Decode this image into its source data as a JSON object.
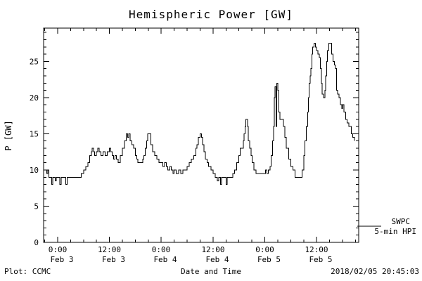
{
  "title": "Hemispheric Power [GW]",
  "footer": {
    "left": "Plot: CCMC",
    "center": "Date and Time",
    "right": "2018/02/05 20:45:03"
  },
  "legend": {
    "line1": "SWPC",
    "line2": "5-min HPI"
  },
  "chart_data": {
    "type": "line",
    "title": "Hemispheric Power [GW]",
    "xlabel": "Date and Time",
    "ylabel": "P [GW]",
    "ylim": [
      0,
      29.6
    ],
    "xlim_hours": [
      -3.25,
      69.75
    ],
    "x_unit": "hours from Feb 3 00:00",
    "grid": false,
    "line_color": "#000000",
    "legend_position": "right-outside",
    "legend_entries": [
      "SWPC 5-min HPI"
    ],
    "y_ticks": [
      0,
      5,
      10,
      15,
      20,
      25
    ],
    "x_ticks": [
      {
        "hour": 0,
        "time": "0:00",
        "date": "Feb 3"
      },
      {
        "hour": 12,
        "time": "12:00",
        "date": "Feb 3"
      },
      {
        "hour": 24,
        "time": "0:00",
        "date": "Feb 4"
      },
      {
        "hour": 36,
        "time": "12:00",
        "date": "Feb 4"
      },
      {
        "hour": 48,
        "time": "0:00",
        "date": "Feb 5"
      },
      {
        "hour": 60,
        "time": "12:00",
        "date": "Feb 5"
      }
    ],
    "series": [
      {
        "name": "SWPC 5-min HPI",
        "points": [
          [
            -3.25,
            10
          ],
          [
            -2.75,
            10
          ],
          [
            -2.5,
            9.5
          ],
          [
            -2.25,
            10
          ],
          [
            -2,
            9
          ],
          [
            -1.6,
            9
          ],
          [
            -1.4,
            8
          ],
          [
            -1.1,
            9
          ],
          [
            -0.6,
            8.5
          ],
          [
            -0.3,
            9
          ],
          [
            0.3,
            9
          ],
          [
            0.5,
            8
          ],
          [
            0.8,
            9
          ],
          [
            1.5,
            9
          ],
          [
            1.9,
            8
          ],
          [
            2.2,
            9
          ],
          [
            3,
            9
          ],
          [
            4,
            9
          ],
          [
            5,
            9
          ],
          [
            5.5,
            9.5
          ],
          [
            6,
            10
          ],
          [
            6.5,
            10.5
          ],
          [
            7,
            11
          ],
          [
            7.4,
            12
          ],
          [
            7.8,
            12.5
          ],
          [
            8,
            13
          ],
          [
            8.3,
            12.5
          ],
          [
            8.6,
            12
          ],
          [
            9,
            12.5
          ],
          [
            9.3,
            13
          ],
          [
            9.6,
            12.5
          ],
          [
            10,
            12
          ],
          [
            10.5,
            12.5
          ],
          [
            11,
            12
          ],
          [
            11.5,
            12.5
          ],
          [
            12,
            13
          ],
          [
            12.3,
            12.5
          ],
          [
            12.6,
            12
          ],
          [
            13,
            11.5
          ],
          [
            13.3,
            12
          ],
          [
            13.6,
            11.5
          ],
          [
            14,
            11
          ],
          [
            14.5,
            12
          ],
          [
            15,
            13
          ],
          [
            15.5,
            14
          ],
          [
            15.9,
            15
          ],
          [
            16.2,
            14.5
          ],
          [
            16.5,
            15
          ],
          [
            16.8,
            14
          ],
          [
            17.2,
            13.5
          ],
          [
            17.6,
            13
          ],
          [
            18,
            12
          ],
          [
            18.3,
            11.5
          ],
          [
            18.6,
            11
          ],
          [
            19.2,
            11
          ],
          [
            19.7,
            11.5
          ],
          [
            20,
            12
          ],
          [
            20.3,
            13
          ],
          [
            20.6,
            14
          ],
          [
            20.9,
            15
          ],
          [
            21.3,
            15
          ],
          [
            21.6,
            13.5
          ],
          [
            22,
            12.5
          ],
          [
            22.5,
            12
          ],
          [
            23,
            11.5
          ],
          [
            23.5,
            11
          ],
          [
            24,
            11
          ],
          [
            24.4,
            10.5
          ],
          [
            24.8,
            11
          ],
          [
            25.2,
            10.5
          ],
          [
            25.5,
            10
          ],
          [
            26,
            10.5
          ],
          [
            26.3,
            10
          ],
          [
            26.7,
            9.5
          ],
          [
            27,
            10
          ],
          [
            27.5,
            9.5
          ],
          [
            28,
            10
          ],
          [
            28.5,
            9.5
          ],
          [
            29,
            10
          ],
          [
            29.6,
            10
          ],
          [
            30,
            10.5
          ],
          [
            30.5,
            11
          ],
          [
            31,
            11.5
          ],
          [
            31.5,
            12
          ],
          [
            32,
            13
          ],
          [
            32.3,
            13.5
          ],
          [
            32.6,
            14.5
          ],
          [
            33,
            15
          ],
          [
            33.3,
            14.5
          ],
          [
            33.6,
            13.5
          ],
          [
            33.9,
            12.5
          ],
          [
            34.2,
            11.5
          ],
          [
            34.6,
            11
          ],
          [
            35,
            10.5
          ],
          [
            35.5,
            10
          ],
          [
            36,
            9.5
          ],
          [
            36.5,
            9
          ],
          [
            37,
            8.5
          ],
          [
            37.3,
            9
          ],
          [
            37.7,
            8
          ],
          [
            38,
            9
          ],
          [
            38.6,
            9
          ],
          [
            39,
            8
          ],
          [
            39.3,
            9
          ],
          [
            40,
            9
          ],
          [
            40.6,
            9.5
          ],
          [
            41,
            10
          ],
          [
            41.5,
            11
          ],
          [
            42,
            12
          ],
          [
            42.3,
            13
          ],
          [
            42.7,
            13
          ],
          [
            43,
            14
          ],
          [
            43.2,
            15
          ],
          [
            43.4,
            16
          ],
          [
            43.6,
            17
          ],
          [
            43.8,
            17
          ],
          [
            44,
            16
          ],
          [
            44.2,
            14
          ],
          [
            44.5,
            13
          ],
          [
            44.8,
            12
          ],
          [
            45.1,
            11
          ],
          [
            45.5,
            10
          ],
          [
            46,
            9.5
          ],
          [
            46.6,
            9.5
          ],
          [
            47.2,
            9.5
          ],
          [
            47.8,
            9.5
          ],
          [
            48.2,
            10
          ],
          [
            48.5,
            9.5
          ],
          [
            48.8,
            10
          ],
          [
            49.2,
            10.5
          ],
          [
            49.5,
            12
          ],
          [
            49.8,
            14
          ],
          [
            50,
            16
          ],
          [
            50.2,
            20
          ],
          [
            50.4,
            21.5
          ],
          [
            50.6,
            16
          ],
          [
            50.8,
            22
          ],
          [
            51,
            21
          ],
          [
            51.2,
            18
          ],
          [
            51.5,
            17
          ],
          [
            52,
            17
          ],
          [
            52.3,
            16
          ],
          [
            52.6,
            14.5
          ],
          [
            53,
            13
          ],
          [
            53.5,
            11.5
          ],
          [
            54,
            10.5
          ],
          [
            54.5,
            10
          ],
          [
            55,
            9
          ],
          [
            55.6,
            9
          ],
          [
            56.2,
            9
          ],
          [
            56.6,
            10
          ],
          [
            57,
            12
          ],
          [
            57.3,
            14
          ],
          [
            57.6,
            16
          ],
          [
            57.9,
            18
          ],
          [
            58.1,
            20
          ],
          [
            58.3,
            22
          ],
          [
            58.5,
            23
          ],
          [
            58.7,
            24
          ],
          [
            58.9,
            26
          ],
          [
            59.1,
            27
          ],
          [
            59.4,
            27.5
          ],
          [
            59.7,
            27
          ],
          [
            60,
            26.5
          ],
          [
            60.3,
            26
          ],
          [
            60.6,
            25.5
          ],
          [
            60.9,
            24
          ],
          [
            61.1,
            22
          ],
          [
            61.3,
            20.5
          ],
          [
            61.6,
            20
          ],
          [
            61.9,
            21
          ],
          [
            62.1,
            23
          ],
          [
            62.3,
            25
          ],
          [
            62.5,
            26.5
          ],
          [
            62.8,
            27.5
          ],
          [
            63.2,
            27.5
          ],
          [
            63.5,
            26
          ],
          [
            63.8,
            25
          ],
          [
            64.1,
            24.5
          ],
          [
            64.4,
            24
          ],
          [
            64.6,
            21
          ],
          [
            64.9,
            20.5
          ],
          [
            65.2,
            20
          ],
          [
            65.5,
            19
          ],
          [
            65.8,
            18.5
          ],
          [
            66,
            19
          ],
          [
            66.3,
            18
          ],
          [
            66.7,
            17
          ],
          [
            67.1,
            16.5
          ],
          [
            67.5,
            16
          ],
          [
            68,
            15
          ],
          [
            68.4,
            14.5
          ],
          [
            68.75,
            14
          ]
        ]
      }
    ]
  }
}
